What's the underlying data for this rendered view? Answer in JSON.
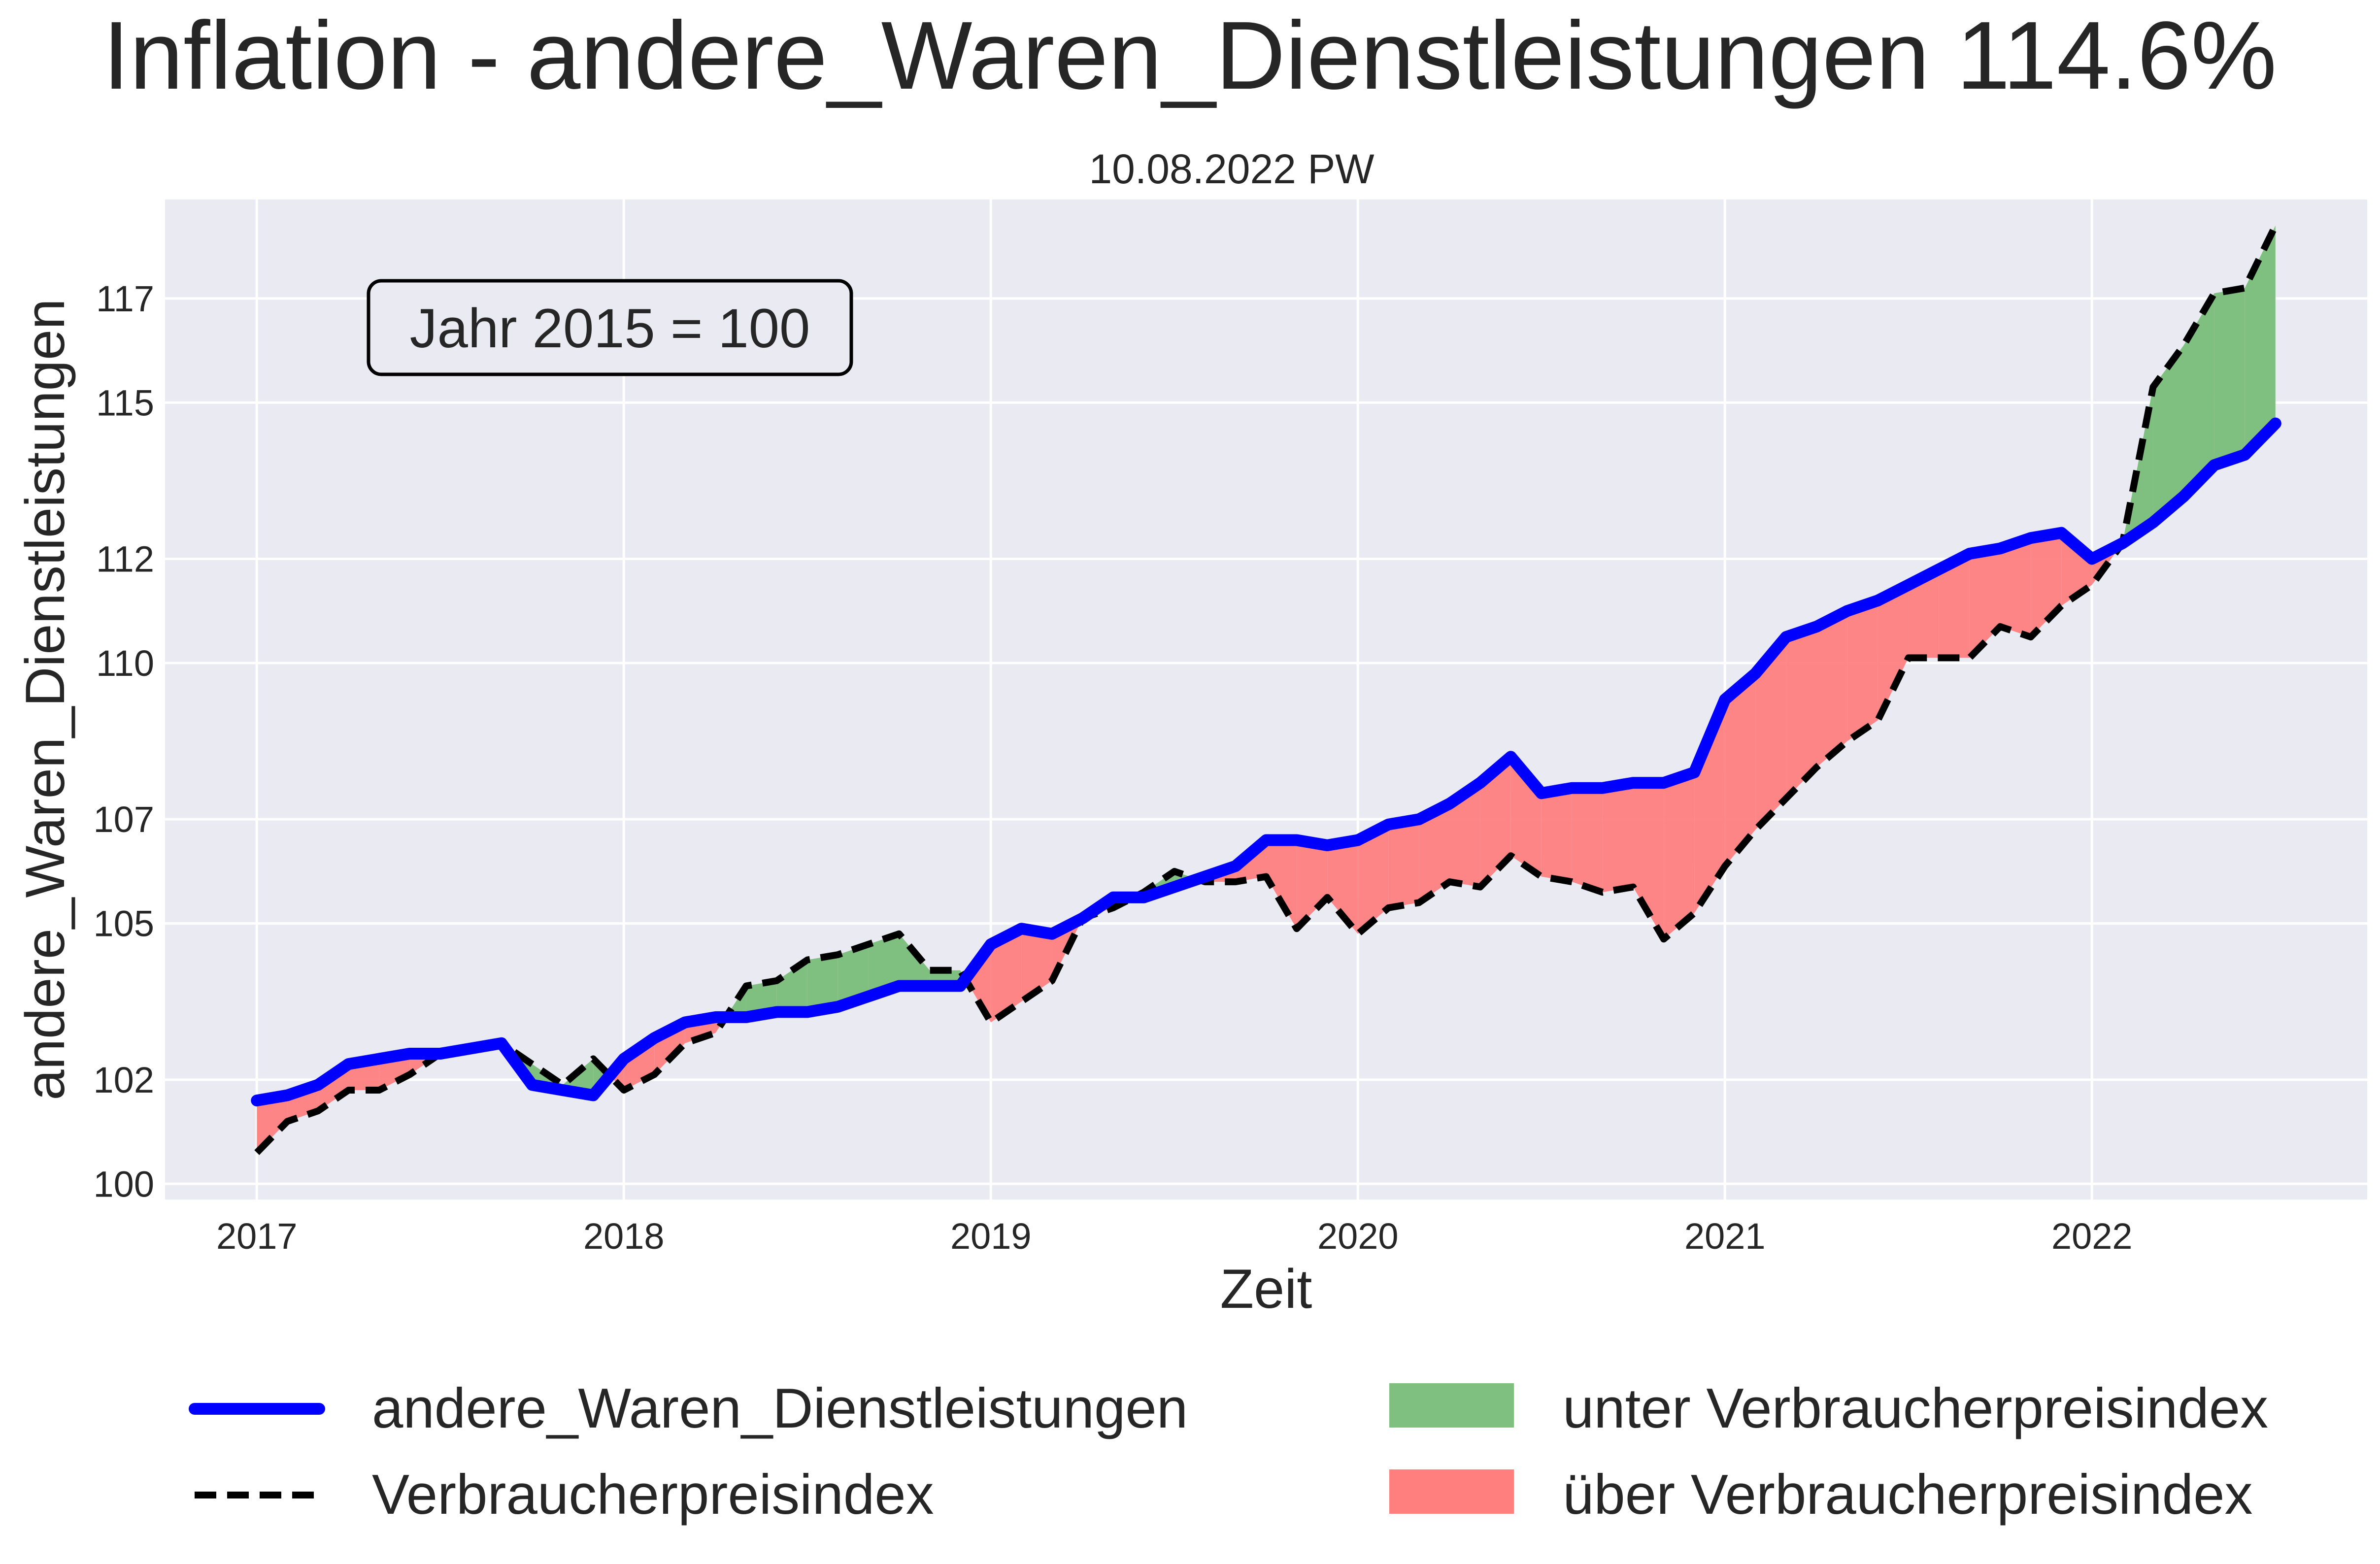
{
  "chart_data": {
    "type": "line",
    "title": "Inflation - andere_Waren_Dienstleistungen 114.6%",
    "subtitle": "10.08.2022 PW",
    "xlabel": "Zeit",
    "ylabel": "andere_Waren_Dienstleistungen",
    "annotation": "Jahr 2015 = 100",
    "x_ticks": [
      "2017",
      "2018",
      "2019",
      "2020",
      "2021",
      "2022"
    ],
    "y_ticks": [
      "100",
      "102",
      "105",
      "107",
      "110",
      "112",
      "115",
      "117"
    ],
    "xlim": [
      2016.75,
      2022.75
    ],
    "ylim": [
      99.7,
      118.9
    ],
    "grid": true,
    "legend_position": "bottom",
    "colors": {
      "series_main": "#0000ff",
      "series_cpi": "#000000",
      "fill_below": "#7fbf7f",
      "fill_above": "#ff7f7f",
      "plot_bg": "#eaeaf2"
    },
    "legend": {
      "main": "andere_Waren_Dienstleistungen",
      "cpi": "Verbraucherpreisindex",
      "below": "unter Verbraucherpreisindex",
      "above": "über Verbraucherpreisindex"
    },
    "x_start": "2017-01",
    "series": [
      {
        "name": "andere_Waren_Dienstleistungen",
        "values": [
          101.6,
          101.7,
          101.9,
          102.3,
          102.4,
          102.5,
          102.5,
          102.6,
          102.7,
          101.9,
          101.8,
          101.7,
          102.4,
          102.8,
          103.1,
          103.2,
          103.2,
          103.3,
          103.3,
          103.4,
          103.6,
          103.8,
          103.8,
          103.8,
          104.6,
          104.9,
          104.8,
          105.1,
          105.5,
          105.5,
          105.7,
          105.9,
          106.1,
          106.6,
          106.6,
          106.5,
          106.6,
          106.9,
          107.0,
          107.3,
          107.7,
          108.2,
          107.5,
          107.6,
          107.6,
          107.7,
          107.7,
          107.9,
          109.3,
          109.8,
          110.5,
          110.7,
          111.0,
          111.2,
          111.5,
          111.8,
          112.1,
          112.2,
          112.4,
          112.5,
          112.0,
          112.3,
          112.7,
          113.2,
          113.8,
          114.0,
          114.6
        ]
      },
      {
        "name": "Verbraucherpreisindex",
        "values": [
          100.6,
          101.2,
          101.4,
          101.8,
          101.8,
          102.1,
          102.5,
          102.6,
          102.7,
          102.3,
          101.9,
          102.4,
          101.8,
          102.1,
          102.7,
          102.9,
          103.8,
          103.9,
          104.3,
          104.4,
          104.6,
          104.8,
          104.1,
          104.1,
          103.1,
          103.5,
          103.9,
          105.1,
          105.3,
          105.6,
          106.0,
          105.8,
          105.8,
          105.9,
          104.9,
          105.5,
          104.8,
          105.3,
          105.4,
          105.8,
          105.7,
          106.3,
          105.9,
          105.8,
          105.6,
          105.7,
          104.7,
          105.2,
          106.1,
          106.8,
          107.4,
          108.0,
          108.5,
          108.9,
          110.1,
          110.1,
          110.1,
          110.7,
          110.5,
          111.1,
          111.5,
          112.3,
          115.3,
          116.1,
          117.1,
          117.2,
          118.4
        ]
      }
    ]
  }
}
